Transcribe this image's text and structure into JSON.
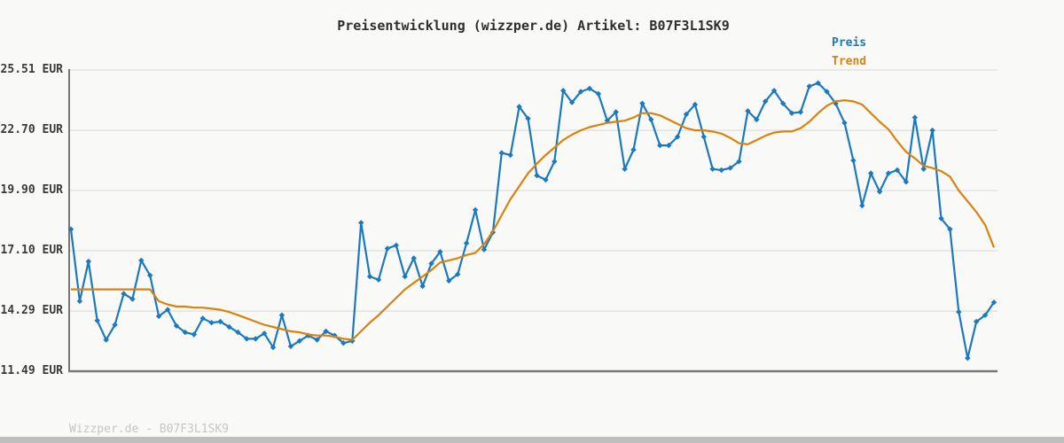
{
  "title": "Preisentwicklung (wizzper.de) Artikel: B07F3L1SK9",
  "footer": "Wizzper.de - B07F3L1SK9",
  "legend": {
    "items": [
      {
        "label": "Preis",
        "color": "#1b79be"
      },
      {
        "label": "Trend",
        "color": "#d9820f"
      }
    ]
  },
  "colors": {
    "price": "#1b79be",
    "trend": "#d9820f",
    "grid": "#e2e2e2",
    "axis": "#777777",
    "background": "#f9f9f8",
    "footer_text": "#c6c6c6",
    "bottom_bar": "#bfbfbf"
  },
  "y_axis": {
    "tick_suffix": " EUR",
    "ticks": [
      25.51,
      22.7,
      19.9,
      17.1,
      14.29,
      11.49
    ]
  },
  "chart_data": {
    "type": "line",
    "title": "Preisentwicklung (wizzper.de) Artikel: B07F3L1SK9",
    "xlabel": "",
    "ylabel": "EUR",
    "ylim": [
      11.49,
      25.51
    ],
    "yticks": [
      25.51,
      22.7,
      19.9,
      17.1,
      14.29,
      11.49
    ],
    "x_tick_labels_visible": false,
    "grid": "horizontal",
    "legend_position": "top-right",
    "series": [
      {
        "name": "Preis",
        "color": "#1b79be",
        "marker": "diamond",
        "values": [
          18.1,
          14.75,
          16.6,
          13.85,
          12.95,
          13.65,
          15.1,
          14.85,
          16.65,
          15.95,
          14.05,
          14.35,
          13.6,
          13.3,
          13.2,
          13.95,
          13.75,
          13.8,
          13.55,
          13.3,
          13.0,
          13.0,
          13.25,
          12.6,
          14.1,
          12.65,
          12.9,
          13.15,
          12.95,
          13.35,
          13.15,
          12.8,
          12.9,
          18.4,
          15.9,
          15.75,
          17.2,
          17.35,
          15.9,
          16.75,
          15.45,
          16.5,
          17.05,
          15.7,
          16.0,
          17.45,
          19.0,
          17.15,
          17.95,
          21.65,
          21.55,
          23.8,
          23.25,
          20.6,
          20.4,
          21.25,
          24.55,
          24.0,
          24.5,
          24.65,
          24.4,
          23.15,
          23.55,
          20.9,
          21.8,
          23.95,
          23.2,
          22.0,
          22.0,
          22.4,
          23.45,
          23.9,
          22.4,
          20.9,
          20.85,
          20.95,
          21.25,
          23.6,
          23.2,
          24.05,
          24.55,
          23.95,
          23.5,
          23.55,
          24.75,
          24.9,
          24.5,
          23.95,
          23.05,
          21.3,
          19.2,
          20.7,
          19.85,
          20.7,
          20.85,
          20.3,
          23.3,
          20.9,
          22.7,
          18.6,
          18.1,
          14.25,
          12.1,
          13.8,
          14.1,
          14.7
        ]
      },
      {
        "name": "Trend",
        "color": "#d9820f",
        "marker": "none",
        "values": [
          15.3,
          15.3,
          15.3,
          15.3,
          15.3,
          15.3,
          15.3,
          15.3,
          15.3,
          15.3,
          14.75,
          14.6,
          14.5,
          14.5,
          14.45,
          14.45,
          14.4,
          14.35,
          14.25,
          14.1,
          13.95,
          13.8,
          13.65,
          13.55,
          13.45,
          13.35,
          13.3,
          13.2,
          13.15,
          13.15,
          13.1,
          13.0,
          12.95,
          13.35,
          13.75,
          14.1,
          14.5,
          14.9,
          15.3,
          15.6,
          15.9,
          16.2,
          16.55,
          16.65,
          16.75,
          16.9,
          17.0,
          17.4,
          18.0,
          18.75,
          19.5,
          20.1,
          20.7,
          21.15,
          21.55,
          21.9,
          22.25,
          22.5,
          22.7,
          22.85,
          22.95,
          23.05,
          23.1,
          23.15,
          23.3,
          23.5,
          23.5,
          23.4,
          23.2,
          23.0,
          22.8,
          22.7,
          22.7,
          22.65,
          22.55,
          22.35,
          22.1,
          22.05,
          22.25,
          22.45,
          22.6,
          22.65,
          22.65,
          22.8,
          23.1,
          23.5,
          23.85,
          24.05,
          24.1,
          24.05,
          23.9,
          23.5,
          23.1,
          22.75,
          22.2,
          21.7,
          21.4,
          21.05,
          20.95,
          20.8,
          20.55,
          19.9,
          19.4,
          18.9,
          18.3,
          17.25
        ]
      }
    ]
  }
}
